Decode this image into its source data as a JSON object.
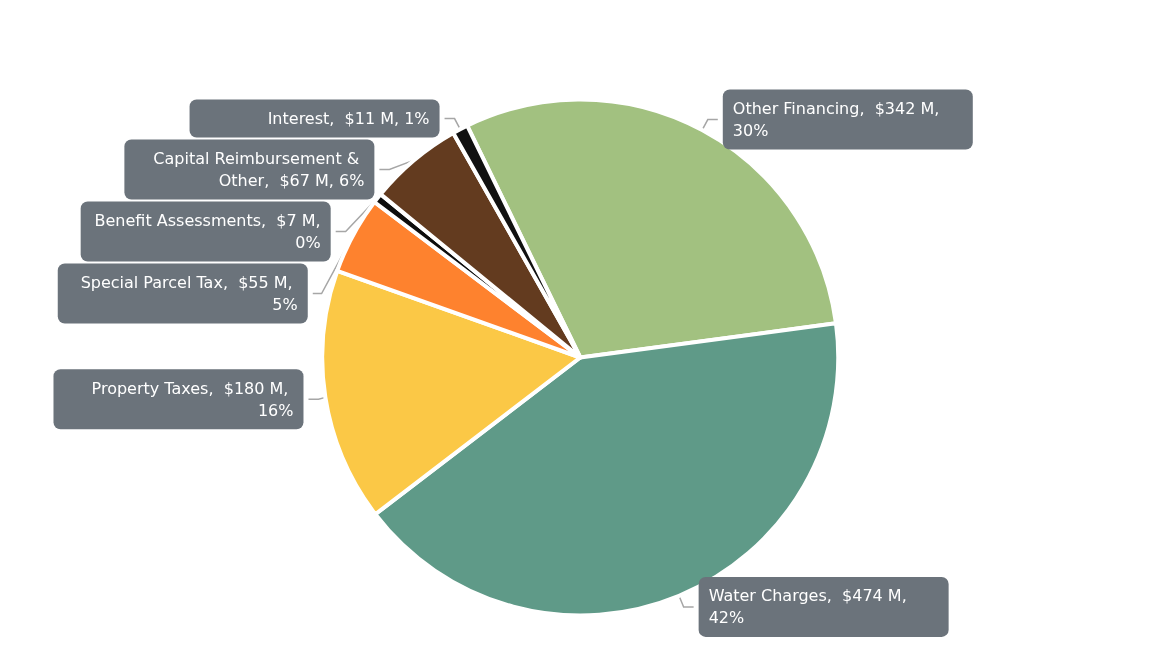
{
  "chart_data": {
    "type": "pie",
    "categories": [
      "Other Financing",
      "Water Charges",
      "Property Taxes",
      "Special Parcel Tax",
      "Benefit Assessments",
      "Capital Reimbursement & Other",
      "Interest"
    ],
    "values": [
      342,
      474,
      180,
      55,
      7,
      67,
      11
    ],
    "value_labels": [
      "$342 M, 30%",
      "$474 M, 42%",
      "$180 M, 16%",
      "$55 M, 5%",
      "$7 M, 0%",
      "$67 M, 6%",
      "$11 M, 1%"
    ],
    "colors": [
      "#a2c180",
      "#5f9a88",
      "#fbc846",
      "#fe822e",
      "#0d0d0d",
      "#633b1f",
      "#111111"
    ],
    "legend": false
  }
}
